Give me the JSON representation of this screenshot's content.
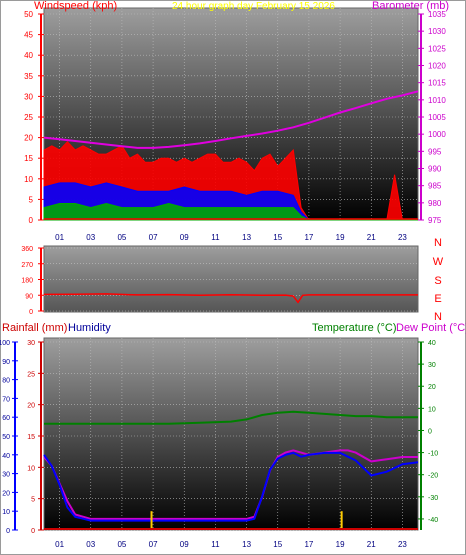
{
  "header": {
    "left_label": "Windspeed (kph)",
    "center_label": "24 hour graph day   February 15 2026",
    "right_label": "Barometer (mb)"
  },
  "colors": {
    "wind_axis": "#ff0000",
    "title": "#ffff00",
    "baro_axis": "#cc00cc",
    "gust": "#ff0000",
    "avg_wind": "#0000ff",
    "low_wind": "#00aa00",
    "baro": "#e000e0",
    "dir": "#ff0000",
    "rain": "#cc0000",
    "humidity": "#00009a",
    "temperature": "#008000",
    "dewpoint": "#cc00cc",
    "hum_line": "#0000ff",
    "bg_top": "#9e9e9e",
    "bg_bottom": "#000000"
  },
  "direction_letters": [
    "N",
    "W",
    "S",
    "E",
    "N"
  ],
  "bottom_header": {
    "rain_label": "Rainfall (mm)",
    "humidity_label": "Humidity",
    "temp_label": "Temperature (°C)",
    "dew_label": "Dew Point (°C)"
  },
  "chart_data": [
    {
      "type": "line",
      "name": "wind_barometer",
      "x_ticks": [
        "01",
        "03",
        "05",
        "07",
        "09",
        "11",
        "13",
        "15",
        "17",
        "19",
        "21",
        "23"
      ],
      "x_range": [
        0,
        24
      ],
      "y_left": {
        "label": "Windspeed (kph)",
        "ticks": [
          0,
          5,
          10,
          15,
          20,
          25,
          30,
          35,
          40,
          45,
          50
        ],
        "range": [
          0,
          50
        ]
      },
      "y_right": {
        "label": "Barometer (mb)",
        "ticks": [
          975,
          980,
          985,
          990,
          995,
          1000,
          1005,
          1010,
          1015,
          1020,
          1025,
          1030,
          1035
        ],
        "range": [
          975,
          1035
        ]
      },
      "series": [
        {
          "key": "barometer",
          "axis": "right",
          "x": [
            0,
            1,
            2,
            3,
            4,
            5,
            6,
            7,
            8,
            9,
            10,
            11,
            12,
            13,
            14,
            15,
            16,
            17,
            18,
            19,
            20,
            21,
            22,
            23,
            24
          ],
          "values": [
            999,
            998.5,
            998,
            997.5,
            997,
            996.5,
            996,
            996,
            996.3,
            996.8,
            997.3,
            998,
            998.8,
            999.5,
            1000.2,
            1001,
            1002,
            1003.3,
            1004.8,
            1006.3,
            1007.6,
            1009,
            1010.3,
            1011.3,
            1012.5
          ]
        },
        {
          "key": "gust",
          "axis": "left",
          "x": [
            0,
            0.5,
            1,
            1.5,
            2,
            2.5,
            3,
            3.5,
            4,
            4.5,
            5,
            5.5,
            6,
            6.5,
            7,
            7.5,
            8,
            8.5,
            9,
            9.5,
            10,
            10.5,
            11,
            11.5,
            12,
            12.5,
            13,
            13.5,
            14,
            14.5,
            15,
            15.5,
            16,
            16.5,
            17,
            17.5,
            18,
            18.5,
            19,
            19.5,
            20,
            20.5,
            21,
            21.5,
            22,
            22.5,
            23,
            23.5,
            24
          ],
          "values": [
            17,
            18,
            17,
            19,
            17,
            18,
            17,
            16,
            16,
            17,
            18,
            15,
            16,
            14,
            14,
            15,
            15,
            14,
            15,
            14,
            15,
            16,
            16,
            14,
            14,
            15,
            14,
            12,
            15,
            16,
            13,
            15,
            17,
            3,
            0,
            0,
            0,
            0,
            0,
            0,
            0,
            0,
            0,
            0,
            0,
            11,
            0,
            0,
            0
          ]
        },
        {
          "key": "average",
          "axis": "left",
          "x": [
            0,
            1,
            2,
            3,
            4,
            5,
            6,
            7,
            8,
            9,
            10,
            11,
            12,
            13,
            14,
            15,
            16,
            16.5,
            17,
            24
          ],
          "values": [
            8,
            9,
            9,
            8,
            9,
            8,
            7,
            7,
            7,
            8,
            7,
            7,
            7,
            6,
            7,
            7,
            6,
            2,
            0,
            0
          ]
        },
        {
          "key": "low",
          "axis": "left",
          "x": [
            0,
            1,
            2,
            3,
            4,
            5,
            6,
            7,
            8,
            9,
            10,
            11,
            12,
            13,
            14,
            15,
            16,
            16.5,
            17,
            24
          ],
          "values": [
            3,
            4,
            4,
            3,
            4,
            3,
            3,
            3,
            4,
            3,
            3,
            3,
            3,
            3,
            3,
            3,
            3,
            1,
            0,
            0
          ]
        }
      ]
    },
    {
      "type": "line",
      "name": "wind_direction",
      "y_ticks": [
        0,
        90,
        180,
        270,
        360
      ],
      "y_range": [
        0,
        360
      ],
      "series": [
        {
          "key": "direction",
          "x": [
            0,
            2,
            4,
            6,
            8,
            10,
            12,
            14,
            15.5,
            16,
            16.3,
            16.6,
            17,
            20,
            24
          ],
          "values": [
            95,
            96,
            98,
            92,
            94,
            90,
            93,
            90,
            91,
            85,
            50,
            90,
            92,
            92,
            92
          ]
        }
      ]
    },
    {
      "type": "line",
      "name": "temp_humidity_rain",
      "x_ticks": [
        "01",
        "03",
        "05",
        "07",
        "09",
        "11",
        "13",
        "15",
        "17",
        "19",
        "21",
        "23"
      ],
      "x_range": [
        0,
        24
      ],
      "y_rain": {
        "label": "Rainfall (mm)",
        "ticks": [
          0,
          5,
          10,
          15,
          20,
          25,
          30
        ],
        "range": [
          0,
          30
        ]
      },
      "y_humidity": {
        "label": "Humidity",
        "ticks": [
          0,
          10,
          20,
          30,
          40,
          50,
          60,
          70,
          80,
          90,
          100
        ],
        "range": [
          0,
          100
        ]
      },
      "y_temp": {
        "label": "Temperature (°C)",
        "ticks": [
          -40,
          -30,
          -20,
          -10,
          0,
          10,
          20,
          30,
          40
        ],
        "range": [
          -45,
          40
        ]
      },
      "series": [
        {
          "key": "temperature",
          "axis": "temp",
          "x": [
            0,
            2,
            4,
            6,
            8,
            10,
            12,
            13,
            14,
            15,
            16,
            17,
            18,
            19,
            20,
            21,
            22,
            23,
            24
          ],
          "values": [
            3,
            3,
            3,
            3,
            3,
            3.5,
            4,
            5,
            7,
            8,
            8.5,
            8,
            7.5,
            7,
            6.5,
            6.5,
            6,
            6,
            6
          ]
        },
        {
          "key": "dewpoint",
          "axis": "temp",
          "x": [
            0,
            0.5,
            1,
            1.5,
            2,
            2.5,
            3,
            5,
            7,
            9,
            11,
            13,
            13.5,
            14,
            14.5,
            15,
            15.5,
            16,
            16.5,
            17,
            18,
            19,
            19.5,
            20,
            21,
            22,
            23,
            24
          ],
          "values": [
            -12,
            -16,
            -24,
            -32,
            -38,
            -39,
            -40,
            -40,
            -40,
            -40,
            -40,
            -40,
            -39,
            -30,
            -18,
            -12,
            -10,
            -9,
            -10,
            -11,
            -10,
            -9,
            -9,
            -10,
            -14,
            -13,
            -12,
            -12
          ]
        },
        {
          "key": "humidity",
          "axis": "humidity",
          "x": [
            0,
            0.5,
            1,
            1.5,
            2,
            2.5,
            3,
            5,
            7,
            9,
            11,
            13,
            13.5,
            14,
            14.5,
            15,
            15.5,
            16,
            16.5,
            17,
            18,
            19,
            19.5,
            20,
            21,
            22,
            23,
            24
          ],
          "values": [
            40,
            34,
            24,
            12,
            7,
            6,
            5,
            5,
            5,
            5,
            5,
            5,
            6,
            18,
            32,
            38,
            40,
            41,
            39,
            40,
            41,
            41,
            39,
            37,
            29,
            31,
            35,
            36
          ]
        },
        {
          "key": "rain",
          "axis": "rain",
          "x": [
            6.9,
            19.1
          ],
          "values": [
            3,
            3
          ]
        }
      ]
    }
  ]
}
